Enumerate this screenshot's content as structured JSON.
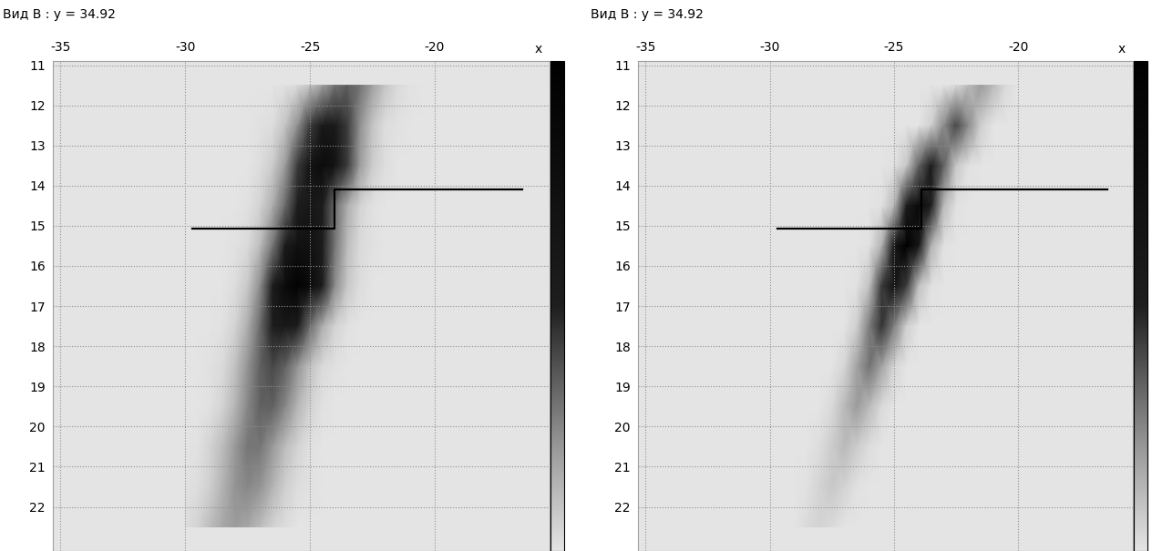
{
  "chart_data": [
    {
      "type": "heatmap",
      "title": "Вид В : y = 34.92",
      "xlabel": "x",
      "xlim": [
        -35.3,
        -15.4
      ],
      "ylim": [
        23.1,
        10.9
      ],
      "xticks": [
        -35,
        -30,
        -25,
        -20
      ],
      "yticks": [
        11,
        12,
        13,
        14,
        15,
        16,
        17,
        18,
        19,
        20,
        21,
        22
      ],
      "grid": true,
      "x": [
        -30,
        -29.5,
        -29,
        -28.5,
        -28,
        -27.5,
        -27,
        -26.5,
        -26,
        -25.5,
        -25,
        -24.5,
        -24,
        -23.5,
        -23,
        -22.5,
        -22,
        -21.5,
        -21,
        -20.5,
        -20
      ],
      "y": [
        11.5,
        12.5,
        13.5,
        14.5,
        15.5,
        16.5,
        17.5,
        18.5,
        19.5,
        20.5,
        21.5,
        22.5
      ],
      "cells": [
        [
          0,
          0,
          0,
          0,
          0,
          0,
          0,
          0,
          0.01,
          0.03,
          0.09,
          0.19,
          0.3,
          0.35,
          0.3,
          0.19,
          0.09,
          0.03,
          0.01,
          0,
          0
        ],
        [
          0,
          0,
          0,
          0,
          0,
          0,
          0.01,
          0.02,
          0.09,
          0.23,
          0.43,
          0.58,
          0.58,
          0.43,
          0.23,
          0.09,
          0.02,
          0.01,
          0,
          0,
          0
        ],
        [
          0,
          0,
          0,
          0,
          0,
          0,
          0.02,
          0.07,
          0.2,
          0.43,
          0.69,
          0.8,
          0.69,
          0.43,
          0.2,
          0.07,
          0.02,
          0,
          0,
          0,
          0
        ],
        [
          0,
          0,
          0,
          0,
          0,
          0.01,
          0.05,
          0.15,
          0.32,
          0.52,
          0.6,
          0.52,
          0.32,
          0.15,
          0.05,
          0.01,
          0,
          0,
          0,
          0,
          0
        ],
        [
          0,
          0,
          0,
          0,
          0.01,
          0.03,
          0.11,
          0.29,
          0.53,
          0.72,
          0.72,
          0.53,
          0.29,
          0.11,
          0.03,
          0.01,
          0,
          0,
          0,
          0,
          0
        ],
        [
          0,
          0,
          0,
          0,
          0.02,
          0.08,
          0.24,
          0.51,
          0.82,
          0.95,
          0.82,
          0.51,
          0.24,
          0.08,
          0.02,
          0,
          0,
          0,
          0,
          0,
          0
        ],
        [
          0,
          0,
          0,
          0.01,
          0.05,
          0.15,
          0.32,
          0.52,
          0.6,
          0.52,
          0.32,
          0.15,
          0.05,
          0.01,
          0,
          0,
          0,
          0,
          0,
          0,
          0
        ],
        [
          0,
          0,
          0.01,
          0.03,
          0.1,
          0.22,
          0.34,
          0.4,
          0.34,
          0.22,
          0.1,
          0.03,
          0.01,
          0,
          0,
          0,
          0,
          0,
          0,
          0,
          0
        ],
        [
          0,
          0,
          0.01,
          0.05,
          0.13,
          0.25,
          0.34,
          0.34,
          0.25,
          0.13,
          0.05,
          0.01,
          0,
          0,
          0,
          0,
          0,
          0,
          0,
          0,
          0
        ],
        [
          0,
          0.01,
          0.05,
          0.11,
          0.21,
          0.29,
          0.29,
          0.21,
          0.11,
          0.05,
          0.01,
          0,
          0,
          0,
          0,
          0,
          0,
          0,
          0,
          0,
          0
        ],
        [
          0.01,
          0.02,
          0.06,
          0.14,
          0.22,
          0.25,
          0.22,
          0.14,
          0.06,
          0.02,
          0.01,
          0,
          0,
          0,
          0,
          0,
          0,
          0,
          0,
          0,
          0
        ],
        [
          0.02,
          0.05,
          0.11,
          0.17,
          0.2,
          0.17,
          0.11,
          0.05,
          0.02,
          0,
          0,
          0,
          0,
          0,
          0,
          0,
          0,
          0,
          0,
          0,
          0
        ]
      ],
      "colorbar_range": [
        0,
        1
      ],
      "colorbar_ticks": [],
      "profile": {
        "x": [
          -29.7,
          -24.0,
          -24.0,
          -16.5
        ],
        "y": [
          15.08,
          15.08,
          14.1,
          14.1
        ],
        "color": "#000000"
      }
    },
    {
      "type": "heatmap",
      "title": "Вид В : y = 34.92",
      "xlabel": "x",
      "xlim": [
        -35.3,
        -15.4
      ],
      "ylim": [
        23.1,
        10.9
      ],
      "xticks": [
        -35,
        -30,
        -25,
        -20
      ],
      "yticks": [
        11,
        12,
        13,
        14,
        15,
        16,
        17,
        18,
        19,
        20,
        21,
        22
      ],
      "grid": true,
      "x": [
        -30,
        -29.5,
        -29,
        -28.5,
        -28,
        -27.5,
        -27,
        -26.5,
        -26,
        -25.5,
        -25,
        -24.5,
        -24,
        -23.5,
        -23,
        -22.5,
        -22,
        -21.5,
        -21,
        -20.5,
        -20
      ],
      "y": [
        11.5,
        12.5,
        13.5,
        14.5,
        15.5,
        16.5,
        17.5,
        18.5,
        19.5,
        20.5,
        21.5,
        22.5
      ],
      "cells": [
        [
          0,
          0,
          0,
          0,
          0,
          0,
          0,
          0,
          0,
          0,
          0,
          0,
          0,
          0,
          0,
          0.03,
          0.12,
          0.2,
          0.12,
          0.03,
          0
        ],
        [
          0,
          0,
          0,
          0,
          0,
          0,
          0,
          0,
          0,
          0,
          0,
          0,
          0,
          0.06,
          0.24,
          0.4,
          0.24,
          0.06,
          0,
          0,
          0
        ],
        [
          0,
          0,
          0,
          0,
          0,
          0,
          0,
          0,
          0,
          0,
          0.01,
          0.08,
          0.34,
          0.55,
          0.34,
          0.08,
          0.01,
          0,
          0,
          0,
          0
        ],
        [
          0,
          0,
          0,
          0,
          0,
          0,
          0,
          0,
          0,
          0.01,
          0.12,
          0.52,
          0.85,
          0.52,
          0.12,
          0.01,
          0,
          0,
          0,
          0,
          0
        ],
        [
          0,
          0,
          0,
          0,
          0,
          0,
          0,
          0,
          0.01,
          0.14,
          0.61,
          1.0,
          0.61,
          0.14,
          0.01,
          0,
          0,
          0,
          0,
          0,
          0
        ],
        [
          0,
          0,
          0,
          0,
          0,
          0,
          0,
          0.01,
          0.1,
          0.43,
          0.7,
          0.43,
          0.1,
          0.01,
          0,
          0,
          0,
          0,
          0,
          0,
          0
        ],
        [
          0,
          0,
          0,
          0,
          0,
          0,
          0,
          0.06,
          0.27,
          0.45,
          0.27,
          0.06,
          0,
          0,
          0,
          0,
          0,
          0,
          0,
          0,
          0
        ],
        [
          0,
          0,
          0,
          0,
          0,
          0,
          0.04,
          0.18,
          0.3,
          0.18,
          0.04,
          0,
          0,
          0,
          0,
          0,
          0,
          0,
          0,
          0,
          0
        ],
        [
          0,
          0,
          0,
          0,
          0,
          0.03,
          0.12,
          0.2,
          0.12,
          0.03,
          0,
          0,
          0,
          0,
          0,
          0,
          0,
          0,
          0,
          0,
          0
        ],
        [
          0,
          0,
          0,
          0,
          0.02,
          0.07,
          0.12,
          0.07,
          0.02,
          0,
          0,
          0,
          0,
          0,
          0,
          0,
          0,
          0,
          0,
          0,
          0
        ],
        [
          0,
          0,
          0,
          0.01,
          0.05,
          0.08,
          0.05,
          0.01,
          0,
          0,
          0,
          0,
          0,
          0,
          0,
          0,
          0,
          0,
          0,
          0,
          0
        ],
        [
          0,
          0,
          0,
          0.03,
          0.05,
          0.03,
          0,
          0,
          0,
          0,
          0,
          0,
          0,
          0,
          0,
          0,
          0,
          0,
          0,
          0,
          0
        ]
      ],
      "colorbar_range": [
        0,
        1
      ],
      "colorbar_ticks": [],
      "profile": {
        "x": [
          -29.7,
          -23.9,
          -23.9,
          -16.4
        ],
        "y": [
          15.08,
          15.08,
          14.1,
          14.1
        ],
        "color": "#000000"
      }
    }
  ]
}
